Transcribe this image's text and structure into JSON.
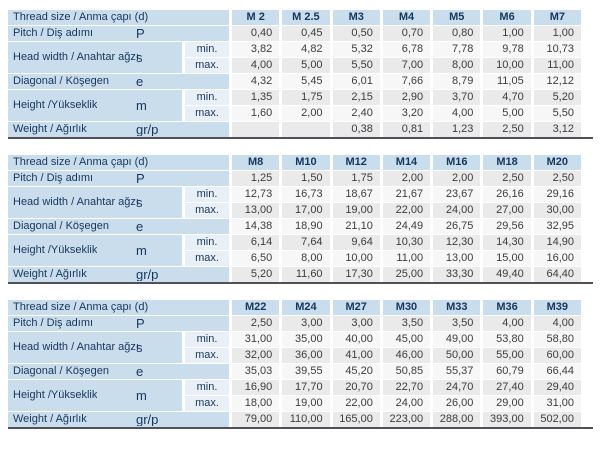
{
  "styles": {
    "header_blue": "#c9ddec",
    "minmax_bg": "#e9eff6",
    "row_odd_bg": "#eaeaea",
    "row_even_bg": "#f7f7f7",
    "label_text": "#17365d",
    "data_text": "#3c3c3c",
    "bottom_line": "#50505a"
  },
  "tables": [
    {
      "header_label": "Thread size / Anma çapı (d)",
      "columns": [
        "M 2",
        "M 2.5",
        "M3",
        "M4",
        "M5",
        "M6",
        "M7"
      ],
      "rows": [
        {
          "label": "Pitch / Diş adımı",
          "symbol": "P",
          "values": [
            "0,40",
            "0,45",
            "0,50",
            "0,70",
            "0,80",
            "1,00",
            "1,00"
          ]
        },
        {
          "label": "Head width / Anahtar ağzı",
          "symbol": "s",
          "subrows": [
            {
              "sub": "min.",
              "values": [
                "3,82",
                "4,82",
                "5,32",
                "6,78",
                "7,78",
                "9,78",
                "10,73"
              ]
            },
            {
              "sub": "max.",
              "values": [
                "4,00",
                "5,00",
                "5,50",
                "7,00",
                "8,00",
                "10,00",
                "11,00"
              ]
            }
          ]
        },
        {
          "label": "Diagonal / Köşegen",
          "symbol": "e",
          "values": [
            "4,32",
            "5,45",
            "6,01",
            "7,66",
            "8,79",
            "11,05",
            "12,12"
          ]
        },
        {
          "label": "Height /Yükseklik",
          "symbol": "m",
          "subrows": [
            {
              "sub": "min.",
              "values": [
                "1,35",
                "1,75",
                "2,15",
                "2,90",
                "3,70",
                "4,70",
                "5,20"
              ]
            },
            {
              "sub": "max.",
              "values": [
                "1,60",
                "2,00",
                "2,40",
                "3,20",
                "4,00",
                "5,00",
                "5,50"
              ]
            }
          ]
        },
        {
          "label": "Weight / Ağırlık",
          "symbol": "gr/p",
          "values": [
            "",
            "",
            "0,38",
            "0,81",
            "1,23",
            "2,50",
            "3,12"
          ]
        }
      ]
    },
    {
      "header_label": "Thread size / Anma çapı (d)",
      "columns": [
        "M8",
        "M10",
        "M12",
        "M14",
        "M16",
        "M18",
        "M20"
      ],
      "rows": [
        {
          "label": "Pitch / Diş adımı",
          "symbol": "P",
          "values": [
            "1,25",
            "1,50",
            "1,75",
            "2,00",
            "2,00",
            "2,50",
            "2,50"
          ]
        },
        {
          "label": "Head width / Anahtar ağzı",
          "symbol": "s",
          "subrows": [
            {
              "sub": "min.",
              "values": [
                "12,73",
                "16,73",
                "18,67",
                "21,67",
                "23,67",
                "26,16",
                "29,16"
              ]
            },
            {
              "sub": "max.",
              "values": [
                "13,00",
                "17,00",
                "19,00",
                "22,00",
                "24,00",
                "27,00",
                "30,00"
              ]
            }
          ]
        },
        {
          "label": "Diagonal / Köşegen",
          "symbol": "e",
          "values": [
            "14,38",
            "18,90",
            "21,10",
            "24,49",
            "26,75",
            "29,56",
            "32,95"
          ]
        },
        {
          "label": "Height /Yükseklik",
          "symbol": "m",
          "subrows": [
            {
              "sub": "min.",
              "values": [
                "6,14",
                "7,64",
                "9,64",
                "10,30",
                "12,30",
                "14,30",
                "14,90"
              ]
            },
            {
              "sub": "max.",
              "values": [
                "6,50",
                "8,00",
                "10,00",
                "11,00",
                "13,00",
                "15,00",
                "16,00"
              ]
            }
          ]
        },
        {
          "label": "Weight / Ağırlık",
          "symbol": "gr/p",
          "values": [
            "5,20",
            "11,60",
            "17,30",
            "25,00",
            "33,30",
            "49,40",
            "64,40"
          ]
        }
      ]
    },
    {
      "header_label": "Thread size / Anma çapı (d)",
      "columns": [
        "M22",
        "M24",
        "M27",
        "M30",
        "M33",
        "M36",
        "M39"
      ],
      "rows": [
        {
          "label": "Pitch / Diş adımı",
          "symbol": "P",
          "values": [
            "2,50",
            "3,00",
            "3,00",
            "3,50",
            "3,50",
            "4,00",
            "4,00"
          ]
        },
        {
          "label": "Head width / Anahtar ağzı",
          "symbol": "s",
          "subrows": [
            {
              "sub": "min.",
              "values": [
                "31,00",
                "35,00",
                "40,00",
                "45,00",
                "49,00",
                "53,80",
                "58,80"
              ]
            },
            {
              "sub": "max.",
              "values": [
                "32,00",
                "36,00",
                "41,00",
                "46,00",
                "50,00",
                "55,00",
                "60,00"
              ]
            }
          ]
        },
        {
          "label": "Diagonal / Köşegen",
          "symbol": "e",
          "values": [
            "35,03",
            "39,55",
            "45,20",
            "50,85",
            "55,37",
            "60,79",
            "66,44"
          ]
        },
        {
          "label": "Height /Yükseklik",
          "symbol": "m",
          "subrows": [
            {
              "sub": "min.",
              "values": [
                "16,90",
                "17,70",
                "20,70",
                "22,70",
                "24,70",
                "27,40",
                "29,40"
              ]
            },
            {
              "sub": "max.",
              "values": [
                "18,00",
                "19,00",
                "22,00",
                "24,00",
                "26,00",
                "29,00",
                "31,00"
              ]
            }
          ]
        },
        {
          "label": "Weight / Ağırlık",
          "symbol": "gr/p",
          "values": [
            "79,00",
            "110,00",
            "165,00",
            "223,00",
            "288,00",
            "393,00",
            "502,00"
          ]
        }
      ]
    }
  ]
}
